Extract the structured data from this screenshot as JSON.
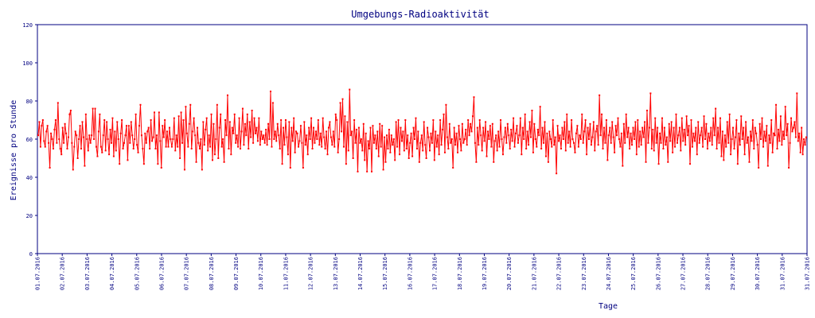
{
  "chart_data": {
    "type": "line",
    "title": "Umgebungs-Radioaktivität",
    "xlabel": "Tage",
    "ylabel": "Ereignisse pro Stunde",
    "ylim": [
      0,
      120
    ],
    "y_ticks": [
      "0",
      "20",
      "40",
      "60",
      "80",
      "100",
      "120"
    ],
    "x_ticks": [
      "01.07.2016",
      "02.07.2016",
      "03.07.2016",
      "04.07.2016",
      "05.07.2016",
      "06.07.2016",
      "07.07.2016",
      "08.07.2016",
      "09.07.2016",
      "10.07.2016",
      "11.07.2016",
      "12.07.2016",
      "13.07.2016",
      "14.07.2016",
      "15.07.2016",
      "16.07.2016",
      "17.07.2016",
      "18.07.2016",
      "19.07.2016",
      "20.07.2016",
      "21.07.2016",
      "22.07.2016",
      "23.07.2016",
      "24.07.2016",
      "25.07.2016",
      "26.07.2016",
      "27.07.2016",
      "28.07.2016",
      "29.07.2016",
      "30.07.2016",
      "31.07.2016",
      "31.07.2016"
    ],
    "grid": false,
    "colors": {
      "line": "#ff0000",
      "axis": "#000080",
      "text": "#000080"
    },
    "series": [
      {
        "values": [
          62,
          69,
          56,
          67,
          70,
          59,
          56,
          64,
          67,
          58,
          45,
          63,
          60,
          55,
          65,
          70,
          58,
          79,
          60,
          55,
          52,
          66,
          58,
          68,
          63,
          55,
          61,
          73,
          75,
          58,
          44,
          56,
          64,
          62,
          50,
          60,
          67,
          55,
          69,
          61,
          46,
          73,
          60,
          54,
          62,
          58,
          62,
          76,
          60,
          76,
          56,
          51,
          64,
          73,
          56,
          53,
          62,
          70,
          54,
          69,
          60,
          52,
          65,
          58,
          71,
          51,
          64,
          54,
          69,
          60,
          47,
          63,
          70,
          55,
          58,
          62,
          67,
          49,
          67,
          58,
          69,
          62,
          55,
          60,
          73,
          57,
          53,
          67,
          78,
          62,
          55,
          47,
          63,
          58,
          64,
          66,
          55,
          70,
          59,
          61,
          74,
          55,
          62,
          47,
          74,
          59,
          45,
          67,
          61,
          70,
          56,
          64,
          56,
          66,
          60,
          56,
          60,
          71,
          54,
          62,
          56,
          72,
          50,
          74,
          58,
          70,
          44,
          77,
          63,
          56,
          68,
          78,
          55,
          64,
          71,
          62,
          48,
          66,
          58,
          55,
          60,
          44,
          69,
          57,
          65,
          71,
          54,
          62,
          56,
          73,
          49,
          68,
          52,
          60,
          78,
          50,
          66,
          73,
          56,
          60,
          48,
          70,
          62,
          83,
          55,
          69,
          52,
          66,
          63,
          73,
          58,
          62,
          56,
          71,
          55,
          64,
          76,
          57,
          68,
          62,
          73,
          55,
          69,
          61,
          75,
          58,
          71,
          63,
          66,
          59,
          71,
          57,
          64,
          60,
          62,
          58,
          65,
          57,
          68,
          60,
          85,
          56,
          79,
          60,
          64,
          59,
          68,
          62,
          55,
          70,
          47,
          66,
          57,
          70,
          61,
          52,
          69,
          45,
          66,
          59,
          71,
          53,
          64,
          63,
          56,
          59,
          67,
          58,
          45,
          69,
          57,
          62,
          52,
          66,
          60,
          71,
          55,
          66,
          58,
          64,
          60,
          70,
          57,
          63,
          56,
          71,
          61,
          55,
          64,
          52,
          66,
          69,
          61,
          57,
          64,
          56,
          73,
          70,
          53,
          60,
          79,
          64,
          81,
          56,
          72,
          47,
          69,
          54,
          86,
          62,
          64,
          50,
          70,
          58,
          65,
          43,
          66,
          58,
          60,
          54,
          68,
          49,
          63,
          43,
          59,
          55,
          66,
          43,
          67,
          58,
          62,
          55,
          64,
          51,
          68,
          56,
          67,
          44,
          61,
          48,
          62,
          55,
          65,
          53,
          62,
          57,
          60,
          49,
          69,
          56,
          70,
          52,
          66,
          59,
          64,
          54,
          70,
          55,
          62,
          50,
          58,
          63,
          51,
          66,
          60,
          71,
          55,
          64,
          48,
          58,
          62,
          54,
          69,
          57,
          50,
          66,
          61,
          54,
          63,
          58,
          70,
          49,
          64,
          56,
          62,
          52,
          70,
          57,
          65,
          73,
          53,
          78,
          61,
          55,
          68,
          58,
          60,
          45,
          66,
          57,
          63,
          53,
          67,
          60,
          54,
          68,
          58,
          60,
          65,
          57,
          70,
          62,
          68,
          64,
          72,
          82,
          58,
          48,
          66,
          57,
          70,
          62,
          54,
          66,
          59,
          69,
          51,
          64,
          60,
          67,
          56,
          68,
          48,
          59,
          62,
          54,
          64,
          56,
          70,
          60,
          52,
          61,
          66,
          58,
          68,
          62,
          55,
          65,
          59,
          71,
          56,
          63,
          67,
          58,
          62,
          71,
          52,
          66,
          60,
          73,
          55,
          64,
          57,
          69,
          61,
          75,
          53,
          68,
          60,
          56,
          65,
          62,
          77,
          55,
          66,
          58,
          69,
          51,
          63,
          48,
          64,
          60,
          56,
          70,
          57,
          61,
          42,
          67,
          59,
          62,
          55,
          66,
          60,
          69,
          54,
          73,
          58,
          64,
          56,
          70,
          60,
          58,
          53,
          63,
          67,
          56,
          62,
          60,
          73,
          58,
          64,
          70,
          52,
          66,
          60,
          68,
          57,
          61,
          69,
          54,
          64,
          67,
          57,
          83,
          62,
          73,
          55,
          66,
          58,
          70,
          49,
          62,
          66,
          58,
          69,
          61,
          53,
          67,
          62,
          71,
          60,
          56,
          63,
          46,
          68,
          58,
          73,
          61,
          66,
          55,
          63,
          57,
          66,
          60,
          69,
          52,
          70,
          56,
          64,
          57,
          66,
          61,
          69,
          48,
          75,
          58,
          66,
          84,
          55,
          65,
          54,
          71,
          58,
          66,
          47,
          63,
          58,
          71,
          55,
          66,
          57,
          61,
          48,
          68,
          59,
          69,
          53,
          66,
          56,
          73,
          58,
          62,
          66,
          54,
          71,
          59,
          65,
          57,
          72,
          62,
          67,
          47,
          70,
          56,
          63,
          59,
          66,
          52,
          69,
          58,
          62,
          66,
          56,
          72,
          60,
          68,
          55,
          63,
          59,
          66,
          57,
          71,
          62,
          76,
          55,
          66,
          58,
          71,
          51,
          64,
          49,
          62,
          56,
          69,
          58,
          73,
          52,
          60,
          66,
          55,
          61,
          70,
          47,
          63,
          57,
          72,
          60,
          66,
          52,
          69,
          58,
          61,
          48,
          64,
          59,
          70,
          55,
          66,
          63,
          57,
          45,
          68,
          60,
          71,
          56,
          64,
          59,
          67,
          46,
          62,
          58,
          70,
          53,
          63,
          62,
          78,
          55,
          65,
          59,
          72,
          57,
          64,
          60,
          77,
          62,
          68,
          45,
          58,
          71,
          64,
          66,
          69,
          61,
          84,
          59,
          63,
          53,
          66,
          52,
          60,
          57,
          61
        ]
      }
    ]
  }
}
